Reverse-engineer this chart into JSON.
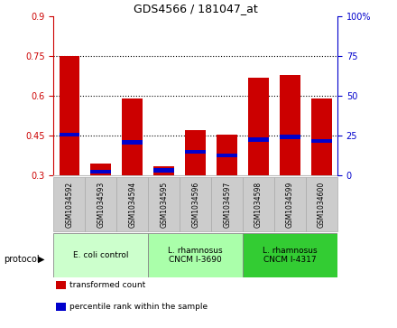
{
  "title": "GDS4566 / 181047_at",
  "samples": [
    "GSM1034592",
    "GSM1034593",
    "GSM1034594",
    "GSM1034595",
    "GSM1034596",
    "GSM1034597",
    "GSM1034598",
    "GSM1034599",
    "GSM1034600"
  ],
  "red_bar_top": [
    0.75,
    0.345,
    0.59,
    0.335,
    0.47,
    0.455,
    0.67,
    0.68,
    0.59
  ],
  "blue_bar_pos": [
    0.455,
    0.315,
    0.425,
    0.32,
    0.39,
    0.375,
    0.435,
    0.445,
    0.43
  ],
  "blue_bar_height": [
    0.015,
    0.015,
    0.015,
    0.015,
    0.015,
    0.015,
    0.015,
    0.015,
    0.015
  ],
  "bar_bottom": 0.3,
  "ylim_left": [
    0.3,
    0.9
  ],
  "ylim_right": [
    0,
    100
  ],
  "yticks_left": [
    0.3,
    0.45,
    0.6,
    0.75,
    0.9
  ],
  "ytick_labels_left": [
    "0.3",
    "0.45",
    "0.6",
    "0.75",
    "0.9"
  ],
  "yticks_right": [
    0,
    25,
    50,
    75,
    100
  ],
  "ytick_labels_right": [
    "0",
    "25",
    "50",
    "75",
    "100%"
  ],
  "red_color": "#CC0000",
  "blue_color": "#0000CC",
  "bar_width": 0.65,
  "group_starts": [
    0,
    3,
    6
  ],
  "group_ends": [
    3,
    6,
    9
  ],
  "group_labels": [
    "E. coli control",
    "L. rhamnosus\nCNCM I-3690",
    "L. rhamnosus\nCNCM I-4317"
  ],
  "group_colors": [
    "#ccffcc",
    "#aaffaa",
    "#33cc33"
  ],
  "protocol_label": "protocol",
  "legend_labels": [
    "transformed count",
    "percentile rank within the sample"
  ],
  "legend_colors": [
    "#CC0000",
    "#0000CC"
  ],
  "left_axis_color": "#CC0000",
  "right_axis_color": "#0000CC",
  "sample_box_color": "#cccccc",
  "sample_box_border": "#aaaaaa",
  "bg_color": "#ffffff"
}
